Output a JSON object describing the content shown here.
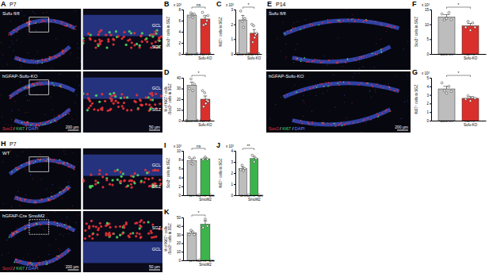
{
  "chart_data": [
    {
      "type": "bar",
      "panel": "B",
      "ylabel": "Sox2⁺ cells in SGZ",
      "multiplier": "x 10³",
      "significance": "ns",
      "categories": [
        "Sufu fl/fl",
        "hGFAP\nSufu-KO"
      ],
      "values": [
        7.0,
        6.3
      ],
      "errors": [
        0.3,
        0.6
      ],
      "points": [
        [
          6.8,
          7.4,
          6.6,
          7.2
        ],
        [
          7.5,
          5.2,
          6.8,
          5.4,
          6.0,
          6.9
        ]
      ],
      "colors": [
        "#bdbdbd",
        "#d9302c"
      ],
      "ylim": [
        0,
        8
      ],
      "yticks": [
        0,
        2,
        4,
        6,
        8
      ]
    },
    {
      "type": "bar",
      "panel": "C",
      "ylabel": "Ki67⁺ cells in SGZ",
      "multiplier": "x 10³",
      "significance": "*",
      "categories": [
        "Sufu fl/fl",
        "hGFAP\nSufu-KO"
      ],
      "values": [
        2.3,
        1.4
      ],
      "errors": [
        0.3,
        0.25
      ],
      "points": [
        [
          2.9,
          2.2,
          1.8,
          2.4
        ],
        [
          2.0,
          0.8,
          1.9,
          1.1,
          1.3,
          1.4
        ]
      ],
      "colors": [
        "#bdbdbd",
        "#d9302c"
      ],
      "ylim": [
        0,
        3
      ],
      "yticks": [
        0,
        1,
        2,
        3
      ]
    },
    {
      "type": "bar",
      "panel": "D",
      "ylabel": "% of Ki67⁺ cells\n/Sox2⁺ cells in SGZ",
      "significance": "*",
      "categories": [
        "Sufu fl/fl",
        "hGFAP\nSufu-KO"
      ],
      "values": [
        33,
        20
      ],
      "errors": [
        3,
        3
      ],
      "points": [
        [
          30,
          39,
          28,
          34
        ],
        [
          28,
          13,
          26,
          16,
          19,
          18
        ]
      ],
      "colors": [
        "#bdbdbd",
        "#d9302c"
      ],
      "ylim": [
        0,
        40
      ],
      "yticks": [
        0,
        10,
        20,
        30,
        40
      ]
    },
    {
      "type": "bar",
      "panel": "F",
      "ylabel": "Sox2⁺ cells in SGZ",
      "multiplier": "x 10³",
      "significance": "*",
      "categories": [
        "Sufu fl/fl",
        "hGFAP\nSufu-KO"
      ],
      "values": [
        12.5,
        9.5
      ],
      "errors": [
        0.8,
        0.8
      ],
      "points": [
        [
          13.5,
          11.5,
          12,
          14,
          11.6
        ],
        [
          9,
          11,
          8,
          10.5,
          9
        ]
      ],
      "colors": [
        "#bdbdbd",
        "#d9302c"
      ],
      "ylim": [
        0,
        15
      ],
      "yticks": [
        0,
        5,
        10,
        15
      ]
    },
    {
      "type": "bar",
      "panel": "G",
      "ylabel": "Ki67⁺ cells in SGZ",
      "multiplier": "x 10³",
      "significance": "*",
      "categories": [
        "Sufu fl/fl",
        "hGFAP\nSufu-KO"
      ],
      "values": [
        3.7,
        2.6
      ],
      "errors": [
        0.3,
        0.2
      ],
      "points": [
        [
          4.4,
          3.5,
          3.2,
          4.0,
          3.4
        ],
        [
          2.5,
          2.9,
          2.3,
          2.7,
          2.6
        ]
      ],
      "colors": [
        "#bdbdbd",
        "#d9302c"
      ],
      "ylim": [
        0,
        5
      ],
      "yticks": [
        0,
        1,
        2,
        3,
        4,
        5
      ]
    },
    {
      "type": "bar",
      "panel": "I",
      "ylabel": "Sox2⁺ cells in SGZ",
      "multiplier": "x 10³",
      "significance": "ns",
      "categories": [
        "WT",
        "hGFAP-Cre\nSmoM2"
      ],
      "values": [
        7.8,
        8.2
      ],
      "errors": [
        0.4,
        0.3
      ],
      "points": [
        [
          8.5,
          7.2,
          7.0,
          8.4
        ],
        [
          8.0,
          8.6,
          8.1
        ]
      ],
      "colors": [
        "#bdbdbd",
        "#3cb44b"
      ],
      "ylim": [
        0,
        10
      ],
      "yticks": [
        0,
        2,
        4,
        6,
        8,
        10
      ]
    },
    {
      "type": "bar",
      "panel": "J",
      "ylabel": "Ki67⁺ cells in SGZ",
      "multiplier": "x 10³",
      "significance": "**",
      "categories": [
        "WT",
        "hGFAP-Cre\nSmoM2"
      ],
      "values": [
        2.4,
        3.3
      ],
      "errors": [
        0.15,
        0.2
      ],
      "points": [
        [
          2.3,
          2.7,
          2.2,
          2.4
        ],
        [
          3.6,
          3.0,
          3.3
        ]
      ],
      "colors": [
        "#bdbdbd",
        "#3cb44b"
      ],
      "ylim": [
        0,
        4
      ],
      "yticks": [
        0,
        1,
        2,
        3,
        4
      ]
    },
    {
      "type": "bar",
      "panel": "K",
      "ylabel": "% of Ki67⁺ cells\n/Sox2⁺ cells in SGZ",
      "significance": "*",
      "categories": [
        "WT",
        "hGFAP-Cre\nSmoM2"
      ],
      "values": [
        32,
        42
      ],
      "errors": [
        2,
        4
      ],
      "points": [
        [
          30,
          35,
          33,
          30
        ],
        [
          38,
          48,
          40
        ]
      ],
      "colors": [
        "#bdbdbd",
        "#3cb44b"
      ],
      "ylim": [
        0,
        50
      ],
      "yticks": [
        0,
        10,
        20,
        30,
        40,
        50
      ]
    }
  ],
  "images": [
    {
      "panel": "A",
      "age": "P7",
      "rows": [
        {
          "label": "Sufu fl/fl",
          "zoom_labels": [
            "GCL",
            "SGZ"
          ]
        },
        {
          "label": "hGFAP-Sufu-KO",
          "zoom_labels": [
            "GCL",
            "SGZ"
          ]
        }
      ],
      "stain_parts": [
        {
          "text": "Sox2",
          "color": "#e8333a"
        },
        {
          "text": " / ",
          "color": "#ffffff"
        },
        {
          "text": "Ki67",
          "color": "#4cd964"
        },
        {
          "text": " / ",
          "color": "#ffffff"
        },
        {
          "text": "DAPI",
          "color": "#6f86ff"
        }
      ],
      "scalebars": [
        "200 µm",
        "50 µm"
      ]
    },
    {
      "panel": "E",
      "age": "P14",
      "rows": [
        {
          "label": "Sufu fl/fl"
        },
        {
          "label": "hGFAP-Sufu-KO"
        }
      ],
      "stain_parts": [
        {
          "text": "Sox2",
          "color": "#e8333a"
        },
        {
          "text": " / ",
          "color": "#ffffff"
        },
        {
          "text": "Ki67",
          "color": "#4cd964"
        },
        {
          "text": " / ",
          "color": "#ffffff"
        },
        {
          "text": "DAPI",
          "color": "#6f86ff"
        }
      ],
      "scalebars": [
        "200 µm"
      ]
    },
    {
      "panel": "H",
      "age": "P7",
      "rows": [
        {
          "label": "WT",
          "zoom_labels": [
            "GCL",
            "SGZ"
          ]
        },
        {
          "label": "hGFAP-Cre SmoM2",
          "zoom_labels": [
            "SGZ",
            "GCL"
          ]
        }
      ],
      "stain_parts": [
        {
          "text": "Sox2",
          "color": "#e8333a"
        },
        {
          "text": " / ",
          "color": "#ffffff"
        },
        {
          "text": "Ki67",
          "color": "#4cd964"
        },
        {
          "text": " / ",
          "color": "#ffffff"
        },
        {
          "text": "DAPI",
          "color": "#6f86ff"
        }
      ],
      "scalebars": [
        "200 µm",
        "50 µm"
      ]
    }
  ]
}
